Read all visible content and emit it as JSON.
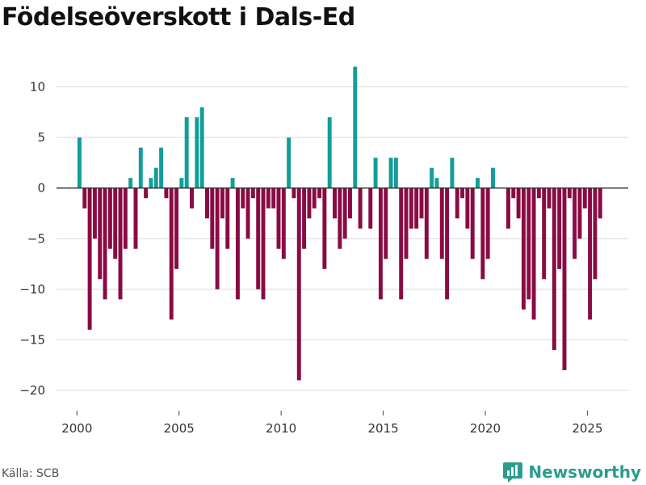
{
  "title": "Födelseöverskott i Dals-Ed",
  "source": "Källa: SCB",
  "brand": "Newsworthy",
  "colors": {
    "positive": "#119e9a",
    "negative": "#8a0b44",
    "grid": "#d9d9d9",
    "zero": "#333333",
    "brand": "#2a9d8f"
  },
  "chart_data": {
    "type": "bar",
    "title": "Födelseöverskott i Dals-Ed",
    "xlabel": "",
    "ylabel": "",
    "ylim": [
      -22,
      13
    ],
    "yticks": [
      10,
      5,
      0,
      -5,
      -10,
      -15,
      -20
    ],
    "xlim": [
      1999.0,
      2027.0
    ],
    "xticks": [
      2000,
      2005,
      2010,
      2015,
      2020,
      2025
    ],
    "grid": true,
    "x": [
      2000.125,
      2000.375,
      2000.625,
      2000.875,
      2001.125,
      2001.375,
      2001.625,
      2001.875,
      2002.125,
      2002.375,
      2002.625,
      2002.875,
      2003.125,
      2003.375,
      2003.625,
      2003.875,
      2004.125,
      2004.375,
      2004.625,
      2004.875,
      2005.125,
      2005.375,
      2005.625,
      2005.875,
      2006.125,
      2006.375,
      2006.625,
      2006.875,
      2007.125,
      2007.375,
      2007.625,
      2007.875,
      2008.125,
      2008.375,
      2008.625,
      2008.875,
      2009.125,
      2009.375,
      2009.625,
      2009.875,
      2010.125,
      2010.375,
      2010.625,
      2010.875,
      2011.125,
      2011.375,
      2011.625,
      2011.875,
      2012.125,
      2012.375,
      2012.625,
      2012.875,
      2013.125,
      2013.375,
      2013.625,
      2013.875,
      2014.125,
      2014.375,
      2014.625,
      2014.875,
      2015.125,
      2015.375,
      2015.625,
      2015.875,
      2016.125,
      2016.375,
      2016.625,
      2016.875,
      2017.125,
      2017.375,
      2017.625,
      2017.875,
      2018.125,
      2018.375,
      2018.625,
      2018.875,
      2019.125,
      2019.375,
      2019.625,
      2019.875,
      2020.125,
      2020.375,
      2020.625,
      2020.875,
      2021.125,
      2021.375,
      2021.625,
      2021.875,
      2022.125,
      2022.375,
      2022.625,
      2022.875,
      2023.125,
      2023.375,
      2023.625,
      2023.875,
      2024.125,
      2024.375,
      2024.625,
      2024.875,
      2025.125,
      2025.375,
      2025.625
    ],
    "values": [
      5,
      -2,
      -14,
      -5,
      -9,
      -11,
      -6,
      -7,
      -11,
      -6,
      1,
      -6,
      4,
      -1,
      1,
      2,
      4,
      -1,
      -13,
      -8,
      1,
      7,
      -2,
      7,
      8,
      -3,
      -6,
      -10,
      -3,
      -6,
      1,
      -11,
      -2,
      -5,
      -1,
      -10,
      -11,
      -2,
      -2,
      -6,
      -7,
      5,
      -1,
      -19,
      -6,
      -3,
      -2,
      -1,
      -8,
      7,
      -3,
      -6,
      -5,
      -3,
      12,
      -4,
      0,
      -4,
      3,
      -11,
      -7,
      3,
      3,
      -11,
      -7,
      -4,
      -4,
      -3,
      -7,
      2,
      1,
      -7,
      -11,
      3,
      -3,
      -1,
      -4,
      -7,
      1,
      -9,
      -7,
      2,
      0,
      0,
      -4,
      -1,
      -3,
      -12,
      -11,
      -13,
      -1,
      -9,
      -2,
      -16,
      -8,
      -18,
      -1,
      -7,
      -5,
      -2,
      -13,
      -9,
      -3
    ]
  }
}
